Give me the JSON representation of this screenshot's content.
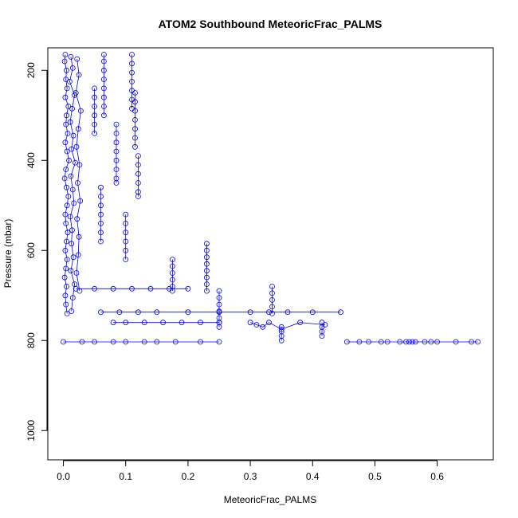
{
  "chart_data": {
    "type": "scatter",
    "title": "ATOM2 Southbound MeteoricFrac_PALMS",
    "xlabel": "MeteoricFrac_PALMS",
    "ylabel": "Pressure (mbar)",
    "xlim": [
      -0.025,
      0.69
    ],
    "ylim": [
      1065,
      150
    ],
    "y_reversed": true,
    "x_ticks": [
      0.0,
      0.1,
      0.2,
      0.3,
      0.4,
      0.5,
      0.6
    ],
    "x_tick_labels": [
      "0.0",
      "0.1",
      "0.2",
      "0.3",
      "0.4",
      "0.5",
      "0.6"
    ],
    "y_ticks": [
      200,
      400,
      600,
      800,
      1000
    ],
    "y_tick_labels": [
      "200",
      "400",
      "600",
      "800",
      "1000"
    ],
    "grid": false,
    "marker": "open-circle",
    "connected": true,
    "color": "#0000ff",
    "series": [
      {
        "x": [
          0.003,
          0.002,
          0.005,
          0.004,
          0.006,
          0.003,
          0.008,
          0.005,
          0.004,
          0.007,
          0.003,
          0.006,
          0.009,
          0.004,
          0.002,
          0.005,
          0.008,
          0.006,
          0.003,
          0.004,
          0.007,
          0.005,
          0.003,
          0.006,
          0.004,
          0.002,
          0.005,
          0.003,
          0.004,
          0.006
        ],
        "y": [
          165,
          180,
          200,
          220,
          240,
          260,
          280,
          300,
          320,
          340,
          360,
          380,
          400,
          420,
          440,
          460,
          480,
          500,
          520,
          540,
          560,
          580,
          600,
          620,
          640,
          660,
          680,
          700,
          720,
          740
        ]
      },
      {
        "x": [
          0.012,
          0.015,
          0.01,
          0.018,
          0.014,
          0.011,
          0.016,
          0.013,
          0.019,
          0.012,
          0.015,
          0.017,
          0.011,
          0.014,
          0.013,
          0.016,
          0.012,
          0.018,
          0.015,
          0.013
        ],
        "y": [
          170,
          195,
          225,
          255,
          285,
          315,
          345,
          375,
          405,
          435,
          465,
          495,
          525,
          555,
          585,
          615,
          645,
          675,
          705,
          735
        ]
      },
      {
        "x": [
          0.022,
          0.025,
          0.02,
          0.028,
          0.024,
          0.021,
          0.026,
          0.023,
          0.027,
          0.022,
          0.025,
          0.024,
          0.021,
          0.026
        ],
        "y": [
          175,
          210,
          250,
          290,
          330,
          370,
          410,
          450,
          490,
          530,
          570,
          610,
          650,
          690
        ]
      },
      {
        "x": [
          0.065,
          0.065,
          0.065,
          0.065,
          0.065,
          0.065,
          0.065,
          0.065
        ],
        "y": [
          165,
          180,
          200,
          220,
          240,
          260,
          280,
          300
        ]
      },
      {
        "x": [
          0.11,
          0.11,
          0.11,
          0.11,
          0.11,
          0.11,
          0.11
        ],
        "y": [
          165,
          185,
          205,
          225,
          245,
          265,
          285
        ]
      },
      {
        "x": [
          0.05,
          0.05,
          0.05,
          0.05,
          0.05,
          0.05
        ],
        "y": [
          240,
          260,
          280,
          300,
          320,
          340
        ]
      },
      {
        "x": [
          0.115,
          0.115,
          0.115,
          0.115,
          0.115,
          0.115,
          0.115
        ],
        "y": [
          250,
          270,
          290,
          310,
          330,
          350,
          370
        ]
      },
      {
        "x": [
          0.085,
          0.085,
          0.085,
          0.085,
          0.085,
          0.085,
          0.085,
          0.085
        ],
        "y": [
          320,
          340,
          360,
          380,
          400,
          420,
          440,
          450
        ]
      },
      {
        "x": [
          0.12,
          0.12,
          0.12,
          0.12,
          0.12,
          0.12
        ],
        "y": [
          390,
          410,
          430,
          450,
          470,
          480
        ]
      },
      {
        "x": [
          0.06,
          0.06,
          0.06,
          0.06,
          0.06,
          0.06,
          0.06
        ],
        "y": [
          460,
          480,
          500,
          520,
          540,
          560,
          580
        ]
      },
      {
        "x": [
          0.1,
          0.1,
          0.1,
          0.1,
          0.1,
          0.1
        ],
        "y": [
          520,
          540,
          560,
          580,
          600,
          620
        ]
      },
      {
        "x": [
          0.23,
          0.23,
          0.23,
          0.23,
          0.23,
          0.23,
          0.23,
          0.23
        ],
        "y": [
          585,
          600,
          615,
          630,
          645,
          660,
          675,
          690
        ]
      },
      {
        "x": [
          0.175,
          0.175,
          0.175,
          0.175,
          0.175,
          0.175
        ],
        "y": [
          620,
          635,
          650,
          665,
          680,
          690
        ]
      },
      {
        "x": [
          0.335,
          0.335,
          0.335,
          0.335,
          0.335
        ],
        "y": [
          680,
          695,
          710,
          725,
          740
        ]
      },
      {
        "x": [
          0.25,
          0.25,
          0.25,
          0.25,
          0.25,
          0.25,
          0.25
        ],
        "y": [
          690,
          705,
          720,
          735,
          750,
          760,
          770
        ]
      },
      {
        "x": [
          0.02,
          0.05,
          0.08,
          0.11,
          0.14,
          0.17,
          0.2
        ],
        "y": [
          685,
          685,
          685,
          685,
          685,
          685,
          685
        ]
      },
      {
        "x": [
          0.06,
          0.09,
          0.12,
          0.15,
          0.2,
          0.25,
          0.3,
          0.33,
          0.36,
          0.4,
          0.445
        ],
        "y": [
          737,
          737,
          737,
          737,
          737,
          737,
          737,
          737,
          737,
          737,
          737
        ]
      },
      {
        "x": [
          0.08,
          0.1,
          0.13,
          0.16,
          0.19,
          0.22,
          0.25
        ],
        "y": [
          760,
          760,
          760,
          760,
          760,
          760,
          760
        ]
      },
      {
        "x": [
          0.3,
          0.31,
          0.32,
          0.33,
          0.35,
          0.38,
          0.42
        ],
        "y": [
          760,
          765,
          770,
          760,
          775,
          760,
          765
        ]
      },
      {
        "x": [
          0.415,
          0.415,
          0.415,
          0.415
        ],
        "y": [
          760,
          770,
          780,
          790
        ]
      },
      {
        "x": [
          0.35,
          0.35,
          0.35,
          0.35
        ],
        "y": [
          770,
          780,
          790,
          800
        ]
      },
      {
        "x": [
          0.0,
          0.03,
          0.05,
          0.08,
          0.1,
          0.13,
          0.15,
          0.18,
          0.22,
          0.25
        ],
        "y": [
          803,
          803,
          803,
          803,
          803,
          803,
          803,
          803,
          803,
          803
        ]
      },
      {
        "x": [
          0.455,
          0.475,
          0.49,
          0.51,
          0.52,
          0.54,
          0.55,
          0.555,
          0.56,
          0.565,
          0.58,
          0.59,
          0.6,
          0.63,
          0.655,
          0.665
        ],
        "y": [
          803,
          803,
          803,
          803,
          803,
          803,
          803,
          803,
          803,
          803,
          803,
          803,
          803,
          803,
          803,
          803
        ]
      }
    ]
  }
}
